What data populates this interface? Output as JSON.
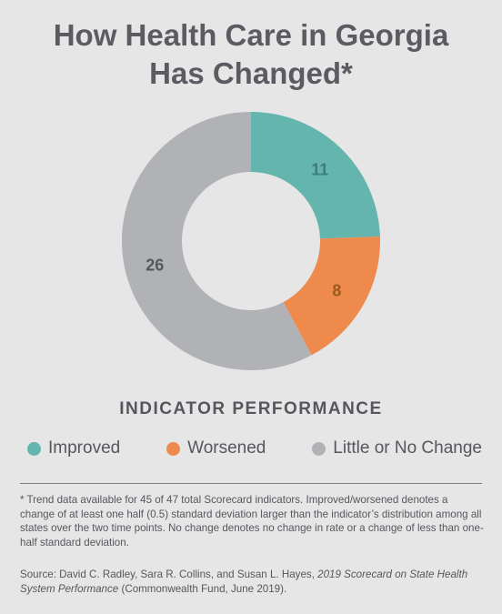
{
  "title": {
    "line1": "How Health Care in Georgia",
    "line2": "Has Changed*"
  },
  "chart_data": {
    "type": "pie",
    "variant": "donut",
    "categories": [
      "Improved",
      "Worsened",
      "Little or No Change"
    ],
    "values": [
      11,
      8,
      26
    ],
    "colors": [
      "#63b5ae",
      "#ee8a4c",
      "#b1b2b6"
    ],
    "label_colors": [
      "#3f7d78",
      "#9a5a1c",
      "#55575c"
    ],
    "legend_title": "INDICATOR PERFORMANCE",
    "legend_position": "bottom"
  },
  "footnote": "* Trend data available for 45 of 47 total Scorecard indicators. Improved/worsened denotes a change of at least one half (0.5) standard deviation larger than the indicator’s distribution among all states over the two time points. No change denotes no change in rate or a change of less than one-half standard deviation.",
  "source": {
    "prefix": "Source: David C. Radley, Sara R. Collins, and Susan L. Hayes, ",
    "title": "2019 Scorecard on State Health System Performance",
    "suffix": " (Commonwealth Fund, June 2019)."
  }
}
